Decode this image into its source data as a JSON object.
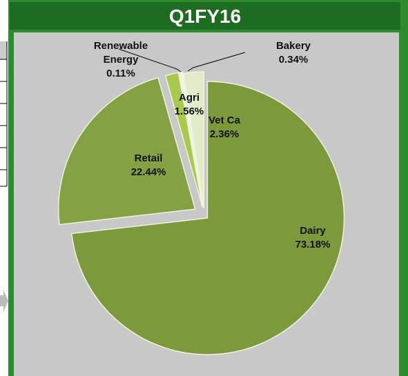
{
  "chart_data": {
    "type": "pie",
    "title": "Q1FY16",
    "categories": [
      "Dairy",
      "Retail",
      "Agri",
      "Renewable Energy",
      "Bakery",
      "Vet Ca"
    ],
    "values": [
      73.18,
      22.44,
      1.56,
      0.11,
      0.34,
      2.36
    ],
    "value_labels": [
      "73.18%",
      "22.44%",
      "1.56%",
      "0.11%",
      "0.34%",
      "2.36%"
    ],
    "colors": [
      "#7c9a3c",
      "#84a243",
      "#a9c94c",
      "#c9dc8e",
      "#f2f6e6",
      "#e2ecc8"
    ]
  }
}
